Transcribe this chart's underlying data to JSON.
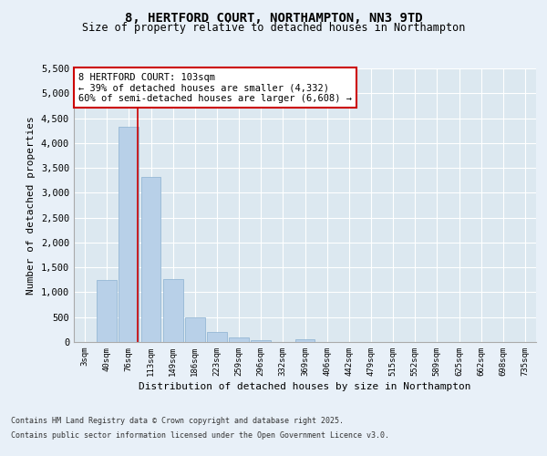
{
  "title": "8, HERTFORD COURT, NORTHAMPTON, NN3 9TD",
  "subtitle": "Size of property relative to detached houses in Northampton",
  "xlabel": "Distribution of detached houses by size in Northampton",
  "ylabel": "Number of detached properties",
  "categories": [
    "3sqm",
    "40sqm",
    "76sqm",
    "113sqm",
    "149sqm",
    "186sqm",
    "223sqm",
    "259sqm",
    "296sqm",
    "332sqm",
    "369sqm",
    "406sqm",
    "442sqm",
    "479sqm",
    "515sqm",
    "552sqm",
    "589sqm",
    "625sqm",
    "662sqm",
    "698sqm",
    "735sqm"
  ],
  "values": [
    0,
    1250,
    4330,
    3320,
    1270,
    490,
    200,
    90,
    45,
    0,
    55,
    0,
    0,
    0,
    0,
    0,
    0,
    0,
    0,
    0,
    0
  ],
  "bar_color": "#b8d0e8",
  "bar_edge_color": "#8ab0d0",
  "vline_color": "#cc0000",
  "vline_x": 2.42,
  "annotation_text": "8 HERTFORD COURT: 103sqm\n← 39% of detached houses are smaller (4,332)\n60% of semi-detached houses are larger (6,608) →",
  "annotation_box_facecolor": "#ffffff",
  "annotation_box_edgecolor": "#cc0000",
  "ylim": [
    0,
    5500
  ],
  "yticks": [
    0,
    500,
    1000,
    1500,
    2000,
    2500,
    3000,
    3500,
    4000,
    4500,
    5000,
    5500
  ],
  "background_color": "#dce8f0",
  "fig_facecolor": "#e8f0f8",
  "footer_line1": "Contains HM Land Registry data © Crown copyright and database right 2025.",
  "footer_line2": "Contains public sector information licensed under the Open Government Licence v3.0."
}
